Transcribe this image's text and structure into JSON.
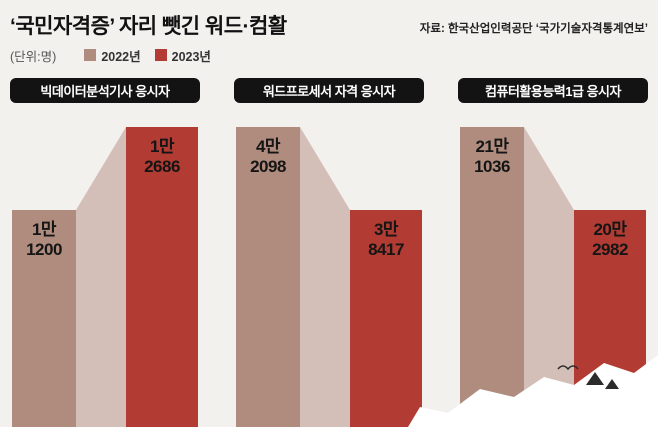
{
  "title": "‘국민자격증’ 자리 뺏긴 워드·컴활",
  "source": "자료: 한국산업인력공단 ‘국가기술자격통계연보’",
  "unit_label": "(단위:명)",
  "colors": {
    "year2022": "#b08c7f",
    "year2023": "#b23b33",
    "ramp": "#cdb6ad",
    "panel_header_bg": "#131313",
    "background": "#f3f1ee",
    "torn_paper": "#ffffff"
  },
  "legend": [
    {
      "label": "2022년",
      "color": "#b08c7f"
    },
    {
      "label": "2023년",
      "color": "#b23b33"
    }
  ],
  "chart_data": [
    {
      "type": "bar",
      "title": "빅데이터분석기사 응시자",
      "categories": [
        "2022년",
        "2023년"
      ],
      "values": [
        11200,
        12686
      ],
      "value_labels": [
        [
          "1만",
          "1200"
        ],
        [
          "1만",
          "2686"
        ]
      ],
      "legend_position": "top-left",
      "grid": false
    },
    {
      "type": "bar",
      "title": "워드프로세서 자격 응시자",
      "categories": [
        "2022년",
        "2023년"
      ],
      "values": [
        42098,
        38417
      ],
      "value_labels": [
        [
          "4만",
          "2098"
        ],
        [
          "3만",
          "8417"
        ]
      ],
      "legend_position": "top-left",
      "grid": false
    },
    {
      "type": "bar",
      "title": "컴퓨터활용능력1급 응시자",
      "categories": [
        "2022년",
        "2023년"
      ],
      "values": [
        211036,
        202982
      ],
      "value_labels": [
        [
          "21만",
          "1036"
        ],
        [
          "20만",
          "2982"
        ]
      ],
      "legend_position": "top-left",
      "grid": false
    }
  ]
}
